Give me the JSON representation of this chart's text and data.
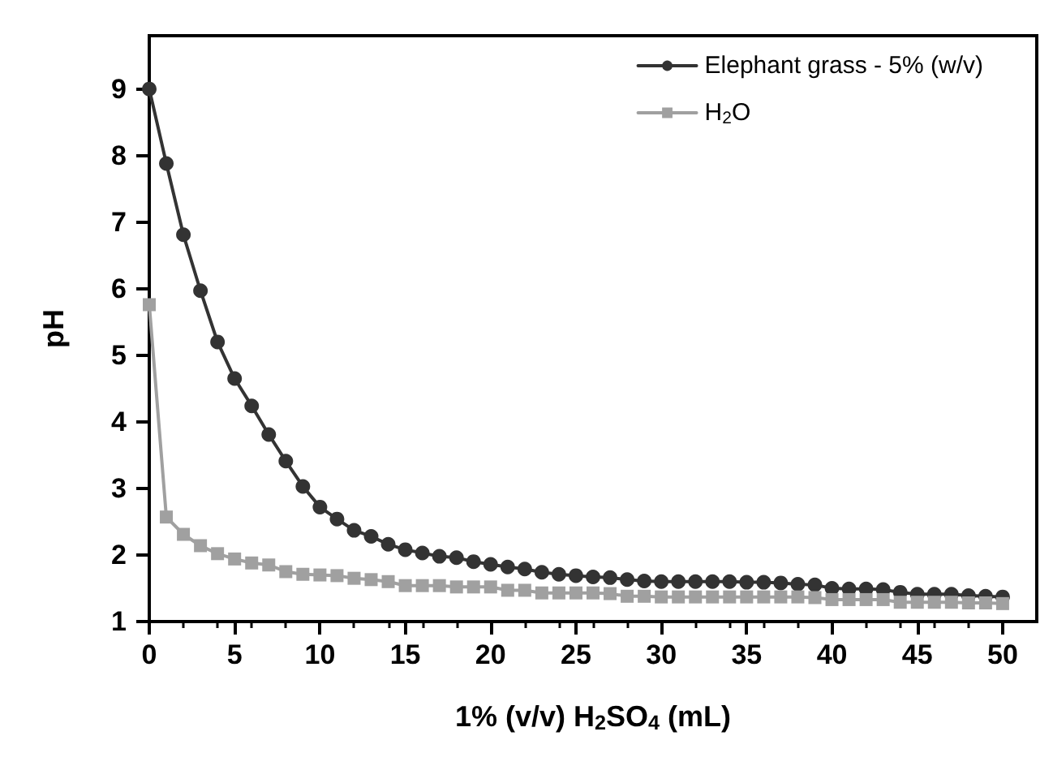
{
  "chart_data": {
    "type": "line",
    "xlabel": "1% (v/v) H$_{2}$SO$_{4}$ (mL)",
    "ylabel": "pH",
    "x": [
      0,
      1,
      2,
      3,
      4,
      5,
      6,
      7,
      8,
      9,
      10,
      11,
      12,
      13,
      14,
      15,
      16,
      17,
      18,
      19,
      20,
      21,
      22,
      23,
      24,
      25,
      26,
      27,
      28,
      29,
      30,
      31,
      32,
      33,
      34,
      35,
      36,
      37,
      38,
      39,
      40,
      41,
      42,
      43,
      44,
      45,
      46,
      47,
      48,
      49,
      50
    ],
    "series": [
      {
        "name": "Elephant grass - 5% (w/v)",
        "color": "#333333",
        "marker": "circle",
        "values": [
          9,
          7.88,
          6.81,
          5.97,
          5.2,
          4.65,
          4.24,
          3.81,
          3.41,
          3.03,
          2.72,
          2.54,
          2.37,
          2.28,
          2.16,
          2.08,
          2.03,
          1.98,
          1.96,
          1.9,
          1.86,
          1.82,
          1.79,
          1.74,
          1.71,
          1.69,
          1.67,
          1.66,
          1.63,
          1.61,
          1.6,
          1.6,
          1.6,
          1.6,
          1.6,
          1.59,
          1.59,
          1.58,
          1.56,
          1.55,
          1.5,
          1.49,
          1.49,
          1.48,
          1.44,
          1.41,
          1.41,
          1.41,
          1.39,
          1.38,
          1.37
        ]
      },
      {
        "name": "H$_{2}$O",
        "color": "#a0a0a0",
        "marker": "square",
        "values": [
          5.76,
          2.57,
          2.31,
          2.14,
          2.02,
          1.94,
          1.88,
          1.85,
          1.75,
          1.71,
          1.7,
          1.69,
          1.65,
          1.63,
          1.6,
          1.54,
          1.54,
          1.54,
          1.52,
          1.52,
          1.52,
          1.47,
          1.47,
          1.43,
          1.43,
          1.43,
          1.43,
          1.42,
          1.38,
          1.38,
          1.37,
          1.37,
          1.37,
          1.37,
          1.37,
          1.37,
          1.37,
          1.37,
          1.37,
          1.36,
          1.33,
          1.33,
          1.33,
          1.33,
          1.29,
          1.29,
          1.29,
          1.29,
          1.28,
          1.28,
          1.27
        ]
      }
    ],
    "xlim": [
      0,
      52
    ],
    "xticks": [
      0,
      5,
      10,
      15,
      20,
      25,
      30,
      35,
      40,
      45,
      50
    ],
    "ylim": [
      1,
      9.8
    ],
    "yticks": [
      1,
      2,
      3,
      4,
      5,
      6,
      7,
      8,
      9
    ],
    "grid": false,
    "legend": "top right",
    "line_style": "solid"
  }
}
